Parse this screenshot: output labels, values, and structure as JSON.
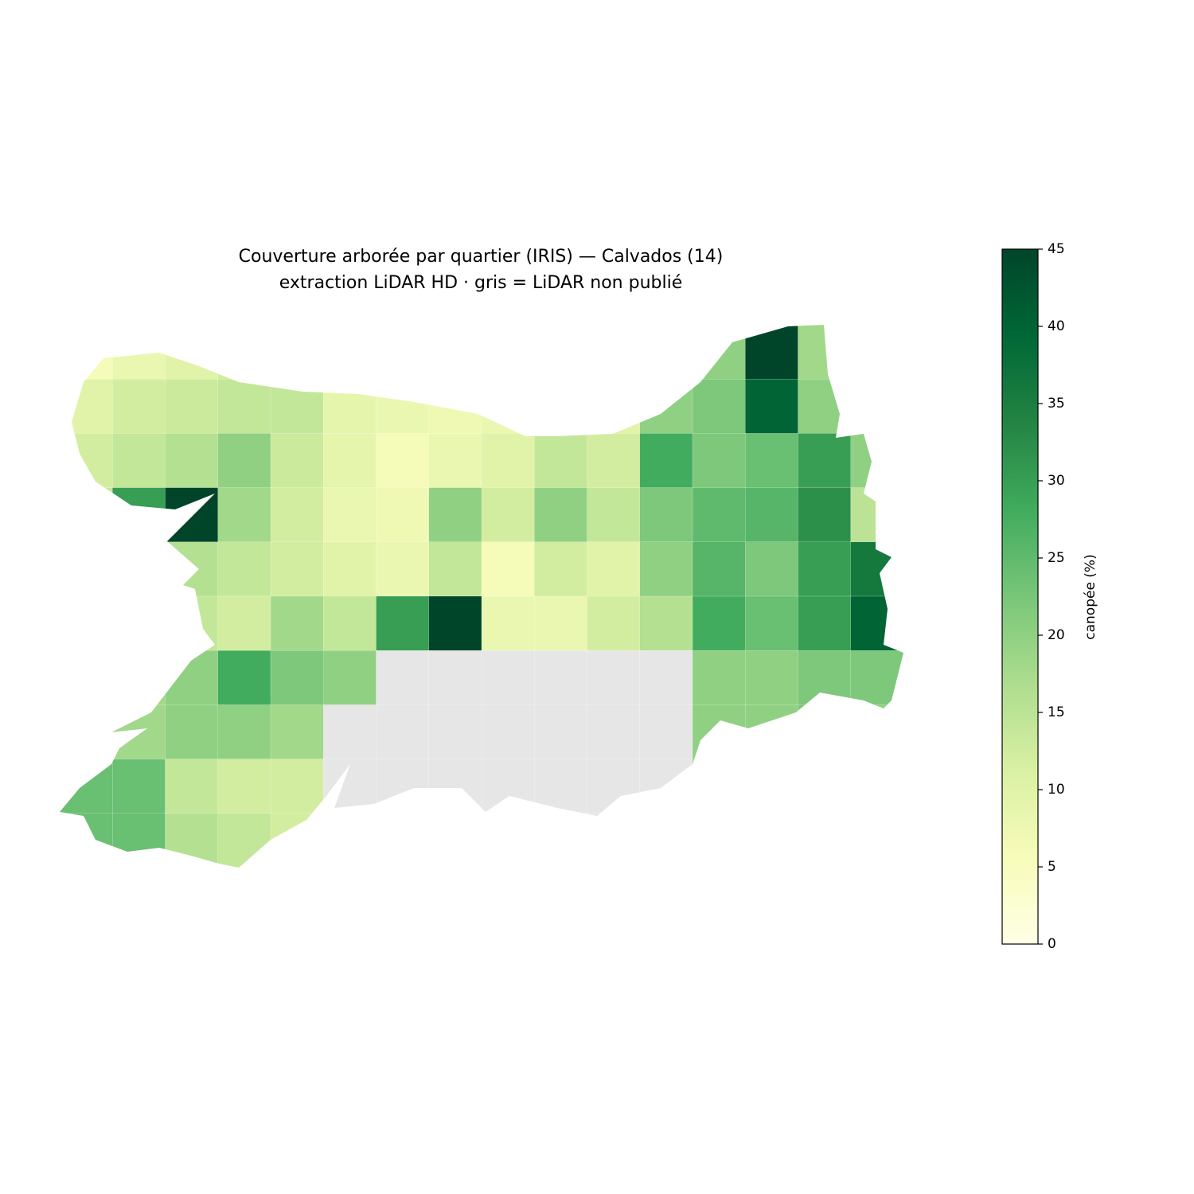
{
  "chart_data": {
    "type": "choropleth",
    "title": "Couverture arborée par quartier (IRIS) — Calvados (14)",
    "subtitle": "extraction LiDAR HD · gris = LiDAR non publié",
    "colorbar_label": "canopée (%)",
    "colormap": "YlGn",
    "missing_color": "#e6e6e6",
    "clim": [
      0,
      45
    ],
    "cticks": [
      0,
      5,
      10,
      15,
      20,
      25,
      30,
      35,
      40,
      45
    ],
    "values": [
      [
        6,
        8,
        10,
        12,
        12,
        10,
        10,
        10,
        10,
        10,
        10,
        12,
        20,
        45,
        18,
        18
      ],
      [
        10,
        12,
        13,
        14,
        14,
        9,
        8,
        7,
        8,
        10,
        10,
        20,
        22,
        40,
        20,
        15
      ],
      [
        12,
        14,
        16,
        20,
        13,
        9,
        6,
        8,
        10,
        14,
        12,
        28,
        22,
        24,
        30,
        20
      ],
      [
        14,
        30,
        45,
        18,
        12,
        8,
        7,
        20,
        12,
        20,
        14,
        22,
        25,
        26,
        32,
        15
      ],
      [
        12,
        14,
        16,
        14,
        12,
        10,
        8,
        14,
        6,
        12,
        10,
        20,
        26,
        22,
        30,
        36
      ],
      [
        10,
        12,
        14,
        12,
        18,
        14,
        30,
        45,
        8,
        8,
        12,
        16,
        28,
        24,
        30,
        40
      ],
      [
        14,
        18,
        20,
        28,
        22,
        20,
        null,
        null,
        null,
        null,
        null,
        null,
        20,
        20,
        22,
        22
      ],
      [
        14,
        18,
        20,
        20,
        18,
        null,
        null,
        null,
        null,
        null,
        null,
        null,
        20,
        20,
        22,
        20
      ],
      [
        24,
        24,
        14,
        12,
        12,
        null,
        null,
        null,
        null,
        null,
        null,
        null,
        20,
        20,
        20,
        20
      ],
      [
        24,
        24,
        16,
        14,
        12,
        null,
        null,
        null,
        null,
        null,
        null,
        null,
        20,
        20,
        20,
        20
      ]
    ]
  }
}
